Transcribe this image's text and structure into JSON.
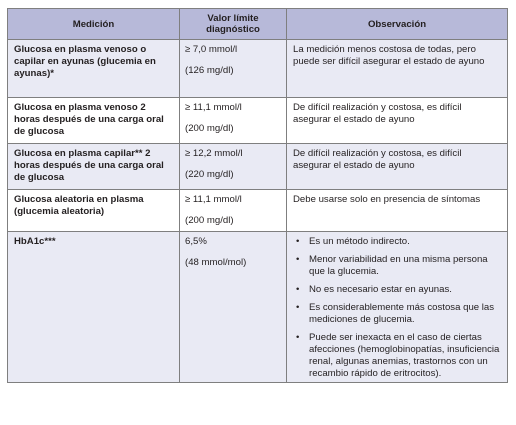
{
  "table": {
    "headers": {
      "medicion": "Medición",
      "valor_line1": "Valor límite",
      "valor_line2": "diagnóstico",
      "observacion": "Observación"
    },
    "rows": [
      {
        "medicion": "Glucosa en plasma venoso o capilar en ayunas (glucemia en ayunas)*",
        "valor_1": "≥ 7,0 mmol/l",
        "valor_2": "(126 mg/dl)",
        "observacion": "La medición menos costosa de todas, pero puede ser difícil asegurar el estado de ayuno"
      },
      {
        "medicion": "Glucosa en plasma venoso 2 horas después de una carga oral de glucosa",
        "valor_1": "≥ 11,1 mmol/l",
        "valor_2": "(200 mg/dl)",
        "observacion": "De difícil realización y costosa, es difícil asegurar el estado de ayuno"
      },
      {
        "medicion": "Glucosa en plasma capilar** 2 horas después de una carga oral de glucosa",
        "valor_1": "≥ 12,2 mmol/l",
        "valor_2": "(220 mg/dl)",
        "observacion": "De difícil realización y costosa, es difícil asegurar el estado de ayuno"
      },
      {
        "medicion": "Glucosa aleatoria en plasma (glucemia aleatoria)",
        "valor_1": "≥ 11,1 mmol/l",
        "valor_2": "(200 mg/dl)",
        "observacion": "Debe usarse solo en presencia de síntomas"
      },
      {
        "medicion": "HbA1c***",
        "valor_1": "6,5%",
        "valor_2": "(48 mmol/mol)",
        "bullet_glyph": "•",
        "observacion_bullets": [
          "Es un método indirecto.",
          "Menor variabilidad en una misma persona que la glucemia.",
          "No es necesario estar en ayunas.",
          "Es considerablemente más costosa que las mediciones de glucemia.",
          "Puede ser inexacta en el caso de ciertas afecciones (hemoglobinopatías, insuficiencia renal, algunas anemias, trastornos con un recambio rápido de eritrocitos)."
        ]
      }
    ]
  }
}
